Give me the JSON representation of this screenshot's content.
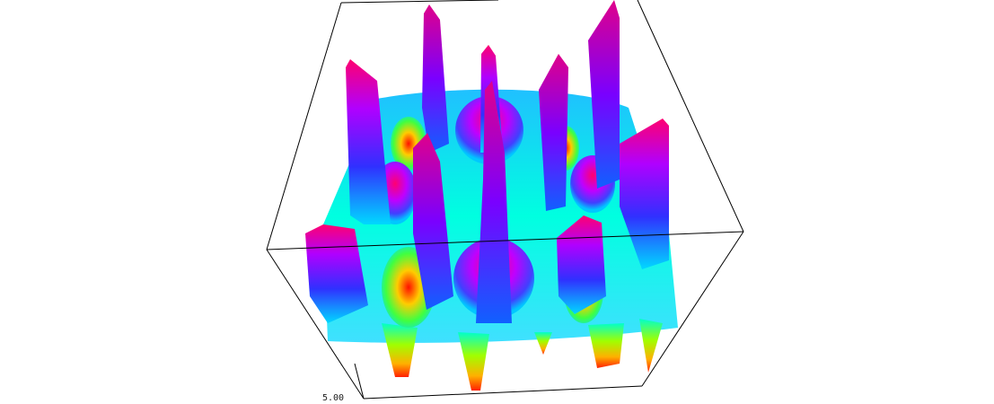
{
  "chart_data": {
    "type": "3d-surface",
    "axis_tick_labels": [
      "5.00"
    ],
    "colormap": [
      "#ff0000",
      "#ffff00",
      "#00ff00",
      "#00ffff",
      "#0000ff",
      "#ff00ff",
      "#ff0040"
    ],
    "box_color": "#000000",
    "background": "#ffffff"
  }
}
